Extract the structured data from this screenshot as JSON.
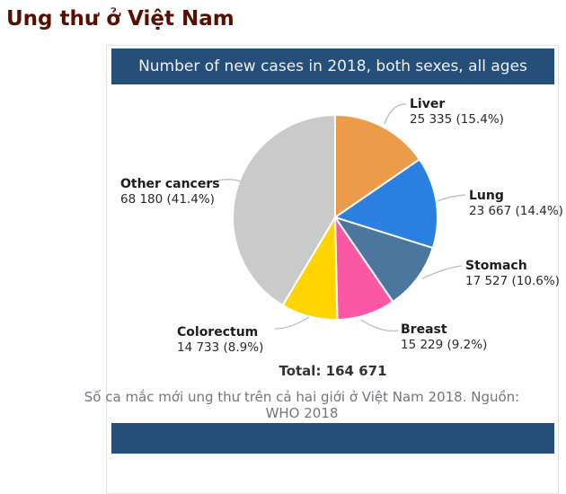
{
  "page": {
    "title": "Ung thư ở Việt Nam"
  },
  "panel": {
    "header": "Number of new cases in 2018, both sexes, all ages",
    "header_bg": "#254e78",
    "total_label": "Total: 164 671",
    "source_caption": {
      "line1": "Số ca mắc mới ung thư trên cả hai giới ở Việt Nam 2018. Nguồn:",
      "line2": "WHO 2018"
    }
  },
  "chart_data": {
    "type": "pie",
    "title": "Number of new cases in 2018, both sexes, all ages",
    "total_text": "Total: 164 671",
    "total": 164671,
    "start": "12 o'clock, clockwise",
    "legend_position": "callout labels around pie",
    "slices": [
      {
        "label": "Liver",
        "value": 25335,
        "pct": 15.4,
        "value_text": "25 335 (15.4%)",
        "color": "#EC9B49"
      },
      {
        "label": "Lung",
        "value": 23667,
        "pct": 14.4,
        "value_text": "23 667 (14.4%)",
        "color": "#2A7FE0"
      },
      {
        "label": "Stomach",
        "value": 17527,
        "pct": 10.6,
        "value_text": "17 527 (10.6%)",
        "color": "#4B769D"
      },
      {
        "label": "Breast",
        "value": 15229,
        "pct": 9.2,
        "value_text": "15 229 (9.2%)",
        "color": "#FA57A5"
      },
      {
        "label": "Colorectum",
        "value": 14733,
        "pct": 8.9,
        "value_text": "14 733 (8.9%)",
        "color": "#FFD400"
      },
      {
        "label": "Other cancers",
        "value": 68180,
        "pct": 41.4,
        "value_text": "68 180 (41.4%)",
        "color": "#CACACA"
      }
    ]
  }
}
